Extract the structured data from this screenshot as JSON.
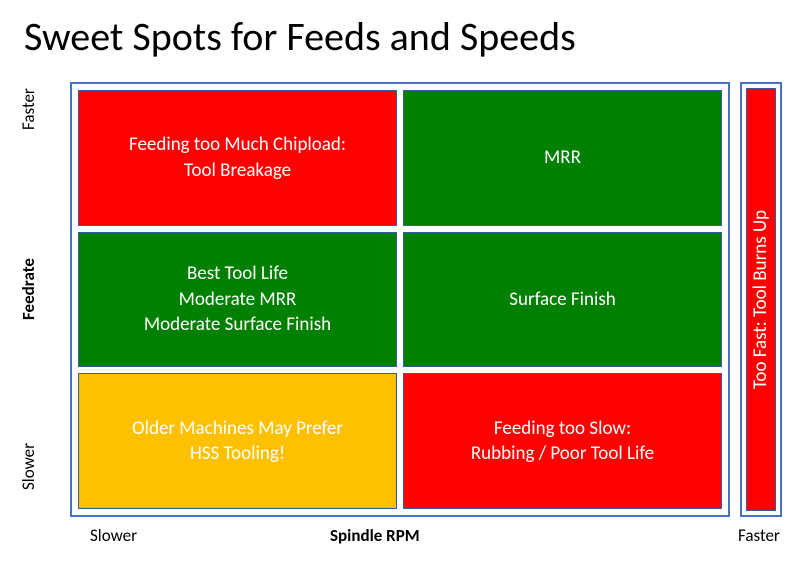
{
  "title": "Sweet Spots for Feeds and Speeds",
  "axes": {
    "y": {
      "label": "Feedrate",
      "low": "Slower",
      "high": "Faster"
    },
    "x": {
      "label": "Spindle RPM",
      "low": "Slower",
      "high": "Faster"
    }
  },
  "colors": {
    "red": "#ff0000",
    "green": "#008000",
    "yellow": "#ffc000",
    "border": "#4472c4",
    "cell_border": "#3a5a9a",
    "text_on_fill": "#ffffff",
    "background": "#ffffff"
  },
  "grid": {
    "rows": 3,
    "cols": 2,
    "cells": [
      {
        "r": 0,
        "c": 0,
        "color": "#ff0000",
        "text": "Feeding too Much Chipload:\nTool Breakage"
      },
      {
        "r": 0,
        "c": 1,
        "color": "#008000",
        "text": "MRR"
      },
      {
        "r": 1,
        "c": 0,
        "color": "#008000",
        "text": "Best Tool Life\nModerate MRR\nModerate Surface Finish"
      },
      {
        "r": 1,
        "c": 1,
        "color": "#008000",
        "text": "Surface Finish"
      },
      {
        "r": 2,
        "c": 0,
        "color": "#ffc000",
        "text": "Older Machines May Prefer\nHSS Tooling!"
      },
      {
        "r": 2,
        "c": 1,
        "color": "#ff0000",
        "text": "Feeding too Slow:\nRubbing / Poor Tool Life"
      }
    ]
  },
  "side_column": {
    "color": "#ff0000",
    "text": "Too Fast: Tool Burns Up"
  },
  "type": "infographic",
  "font": {
    "title_size": 40,
    "cell_size": 19,
    "axis_size": 17
  }
}
